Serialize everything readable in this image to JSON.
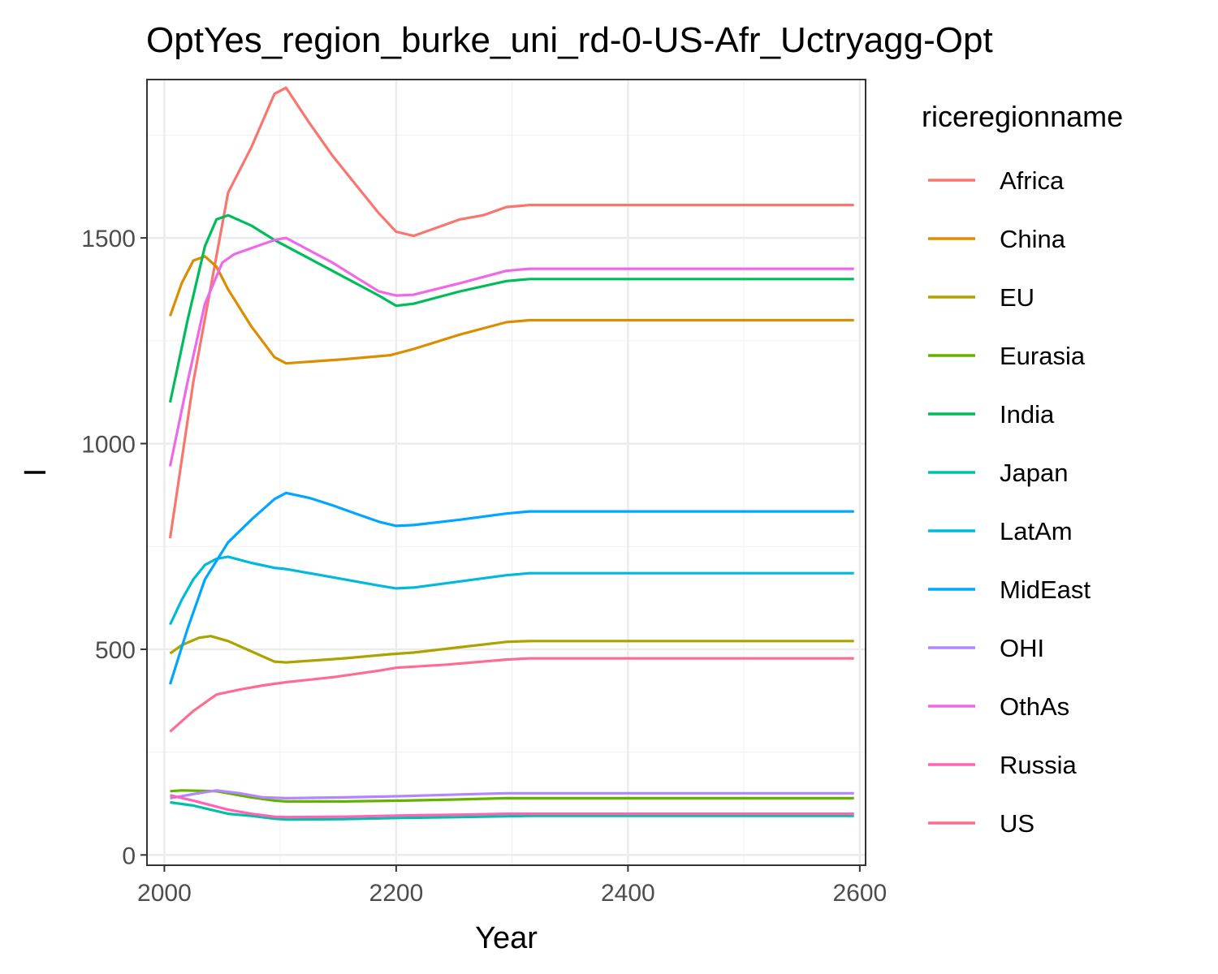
{
  "chart_data": {
    "type": "line",
    "title": "OptYes_region_burke_uni_rd-0-US-Afr_Uctryagg-Opt",
    "xlabel": "Year",
    "ylabel": "I",
    "xlim": [
      1985,
      2605
    ],
    "ylim": [
      -25,
      1885
    ],
    "x_ticks": [
      2000,
      2200,
      2400,
      2600
    ],
    "y_ticks": [
      0,
      500,
      1000,
      1500
    ],
    "grid": true,
    "legend": {
      "title": "riceregionname",
      "position": "right"
    },
    "series": [
      {
        "name": "Africa",
        "color": "#F8766D",
        "points": [
          [
            2005,
            770
          ],
          [
            2025,
            1150
          ],
          [
            2055,
            1610
          ],
          [
            2075,
            1720
          ],
          [
            2095,
            1850
          ],
          [
            2105,
            1865
          ],
          [
            2125,
            1780
          ],
          [
            2145,
            1700
          ],
          [
            2165,
            1630
          ],
          [
            2185,
            1560
          ],
          [
            2200,
            1515
          ],
          [
            2215,
            1505
          ],
          [
            2235,
            1525
          ],
          [
            2255,
            1545
          ],
          [
            2275,
            1555
          ],
          [
            2295,
            1575
          ],
          [
            2315,
            1580
          ],
          [
            2595,
            1580
          ]
        ]
      },
      {
        "name": "China",
        "color": "#DB8E00",
        "points": [
          [
            2005,
            1310
          ],
          [
            2015,
            1390
          ],
          [
            2025,
            1445
          ],
          [
            2035,
            1455
          ],
          [
            2045,
            1430
          ],
          [
            2055,
            1375
          ],
          [
            2075,
            1285
          ],
          [
            2095,
            1210
          ],
          [
            2105,
            1195
          ],
          [
            2155,
            1205
          ],
          [
            2195,
            1215
          ],
          [
            2215,
            1230
          ],
          [
            2255,
            1265
          ],
          [
            2295,
            1295
          ],
          [
            2315,
            1300
          ],
          [
            2595,
            1300
          ]
        ]
      },
      {
        "name": "EU",
        "color": "#AEA200",
        "points": [
          [
            2005,
            490
          ],
          [
            2015,
            510
          ],
          [
            2030,
            528
          ],
          [
            2040,
            532
          ],
          [
            2055,
            520
          ],
          [
            2075,
            495
          ],
          [
            2095,
            470
          ],
          [
            2105,
            468
          ],
          [
            2155,
            478
          ],
          [
            2195,
            488
          ],
          [
            2215,
            492
          ],
          [
            2255,
            505
          ],
          [
            2295,
            518
          ],
          [
            2315,
            520
          ],
          [
            2595,
            520
          ]
        ]
      },
      {
        "name": "Eurasia",
        "color": "#64B200",
        "points": [
          [
            2005,
            155
          ],
          [
            2015,
            157
          ],
          [
            2045,
            155
          ],
          [
            2075,
            140
          ],
          [
            2095,
            132
          ],
          [
            2105,
            130
          ],
          [
            2155,
            130
          ],
          [
            2205,
            132
          ],
          [
            2255,
            135
          ],
          [
            2295,
            138
          ],
          [
            2315,
            138
          ],
          [
            2595,
            138
          ]
        ]
      },
      {
        "name": "India",
        "color": "#00BD5C",
        "points": [
          [
            2005,
            1100
          ],
          [
            2020,
            1300
          ],
          [
            2035,
            1480
          ],
          [
            2045,
            1545
          ],
          [
            2055,
            1555
          ],
          [
            2075,
            1530
          ],
          [
            2095,
            1495
          ],
          [
            2105,
            1480
          ],
          [
            2145,
            1420
          ],
          [
            2185,
            1360
          ],
          [
            2200,
            1335
          ],
          [
            2215,
            1340
          ],
          [
            2255,
            1370
          ],
          [
            2295,
            1395
          ],
          [
            2315,
            1400
          ],
          [
            2595,
            1400
          ]
        ]
      },
      {
        "name": "Japan",
        "color": "#00C1A7",
        "points": [
          [
            2005,
            128
          ],
          [
            2025,
            120
          ],
          [
            2055,
            100
          ],
          [
            2075,
            95
          ],
          [
            2095,
            88
          ],
          [
            2105,
            86
          ],
          [
            2155,
            87
          ],
          [
            2205,
            90
          ],
          [
            2255,
            92
          ],
          [
            2295,
            94
          ],
          [
            2315,
            95
          ],
          [
            2595,
            95
          ]
        ]
      },
      {
        "name": "LatAm",
        "color": "#00BADE",
        "points": [
          [
            2005,
            560
          ],
          [
            2015,
            620
          ],
          [
            2025,
            670
          ],
          [
            2035,
            705
          ],
          [
            2045,
            720
          ],
          [
            2055,
            725
          ],
          [
            2075,
            710
          ],
          [
            2095,
            698
          ],
          [
            2105,
            695
          ],
          [
            2145,
            675
          ],
          [
            2185,
            655
          ],
          [
            2200,
            648
          ],
          [
            2215,
            650
          ],
          [
            2255,
            665
          ],
          [
            2295,
            680
          ],
          [
            2315,
            685
          ],
          [
            2595,
            685
          ]
        ]
      },
      {
        "name": "MidEast",
        "color": "#00A6FF",
        "points": [
          [
            2005,
            415
          ],
          [
            2020,
            550
          ],
          [
            2035,
            670
          ],
          [
            2055,
            760
          ],
          [
            2075,
            815
          ],
          [
            2095,
            865
          ],
          [
            2105,
            880
          ],
          [
            2125,
            868
          ],
          [
            2145,
            850
          ],
          [
            2165,
            830
          ],
          [
            2185,
            810
          ],
          [
            2200,
            800
          ],
          [
            2215,
            802
          ],
          [
            2255,
            815
          ],
          [
            2295,
            830
          ],
          [
            2315,
            835
          ],
          [
            2595,
            835
          ]
        ]
      },
      {
        "name": "OHI",
        "color": "#B385FF",
        "points": [
          [
            2005,
            138
          ],
          [
            2025,
            148
          ],
          [
            2045,
            157
          ],
          [
            2065,
            150
          ],
          [
            2085,
            140
          ],
          [
            2105,
            138
          ],
          [
            2155,
            140
          ],
          [
            2205,
            143
          ],
          [
            2255,
            147
          ],
          [
            2295,
            150
          ],
          [
            2315,
            150
          ],
          [
            2595,
            150
          ]
        ]
      },
      {
        "name": "OthAs",
        "color": "#EF67EB",
        "points": [
          [
            2005,
            945
          ],
          [
            2020,
            1150
          ],
          [
            2035,
            1340
          ],
          [
            2050,
            1440
          ],
          [
            2060,
            1460
          ],
          [
            2075,
            1475
          ],
          [
            2095,
            1495
          ],
          [
            2105,
            1500
          ],
          [
            2125,
            1470
          ],
          [
            2145,
            1440
          ],
          [
            2165,
            1405
          ],
          [
            2185,
            1370
          ],
          [
            2200,
            1360
          ],
          [
            2215,
            1362
          ],
          [
            2255,
            1390
          ],
          [
            2295,
            1420
          ],
          [
            2315,
            1425
          ],
          [
            2595,
            1425
          ]
        ]
      },
      {
        "name": "Russia",
        "color": "#FF63B6",
        "points": [
          [
            2005,
            145
          ],
          [
            2025,
            132
          ],
          [
            2055,
            110
          ],
          [
            2075,
            100
          ],
          [
            2095,
            93
          ],
          [
            2105,
            92
          ],
          [
            2155,
            93
          ],
          [
            2205,
            96
          ],
          [
            2255,
            98
          ],
          [
            2295,
            100
          ],
          [
            2315,
            100
          ],
          [
            2595,
            100
          ]
        ]
      },
      {
        "name": "US",
        "color": "#FF6C91",
        "points": [
          [
            2005,
            300
          ],
          [
            2025,
            350
          ],
          [
            2045,
            390
          ],
          [
            2065,
            402
          ],
          [
            2085,
            412
          ],
          [
            2105,
            420
          ],
          [
            2145,
            432
          ],
          [
            2185,
            448
          ],
          [
            2200,
            455
          ],
          [
            2245,
            463
          ],
          [
            2295,
            475
          ],
          [
            2315,
            478
          ],
          [
            2595,
            478
          ]
        ]
      }
    ]
  }
}
